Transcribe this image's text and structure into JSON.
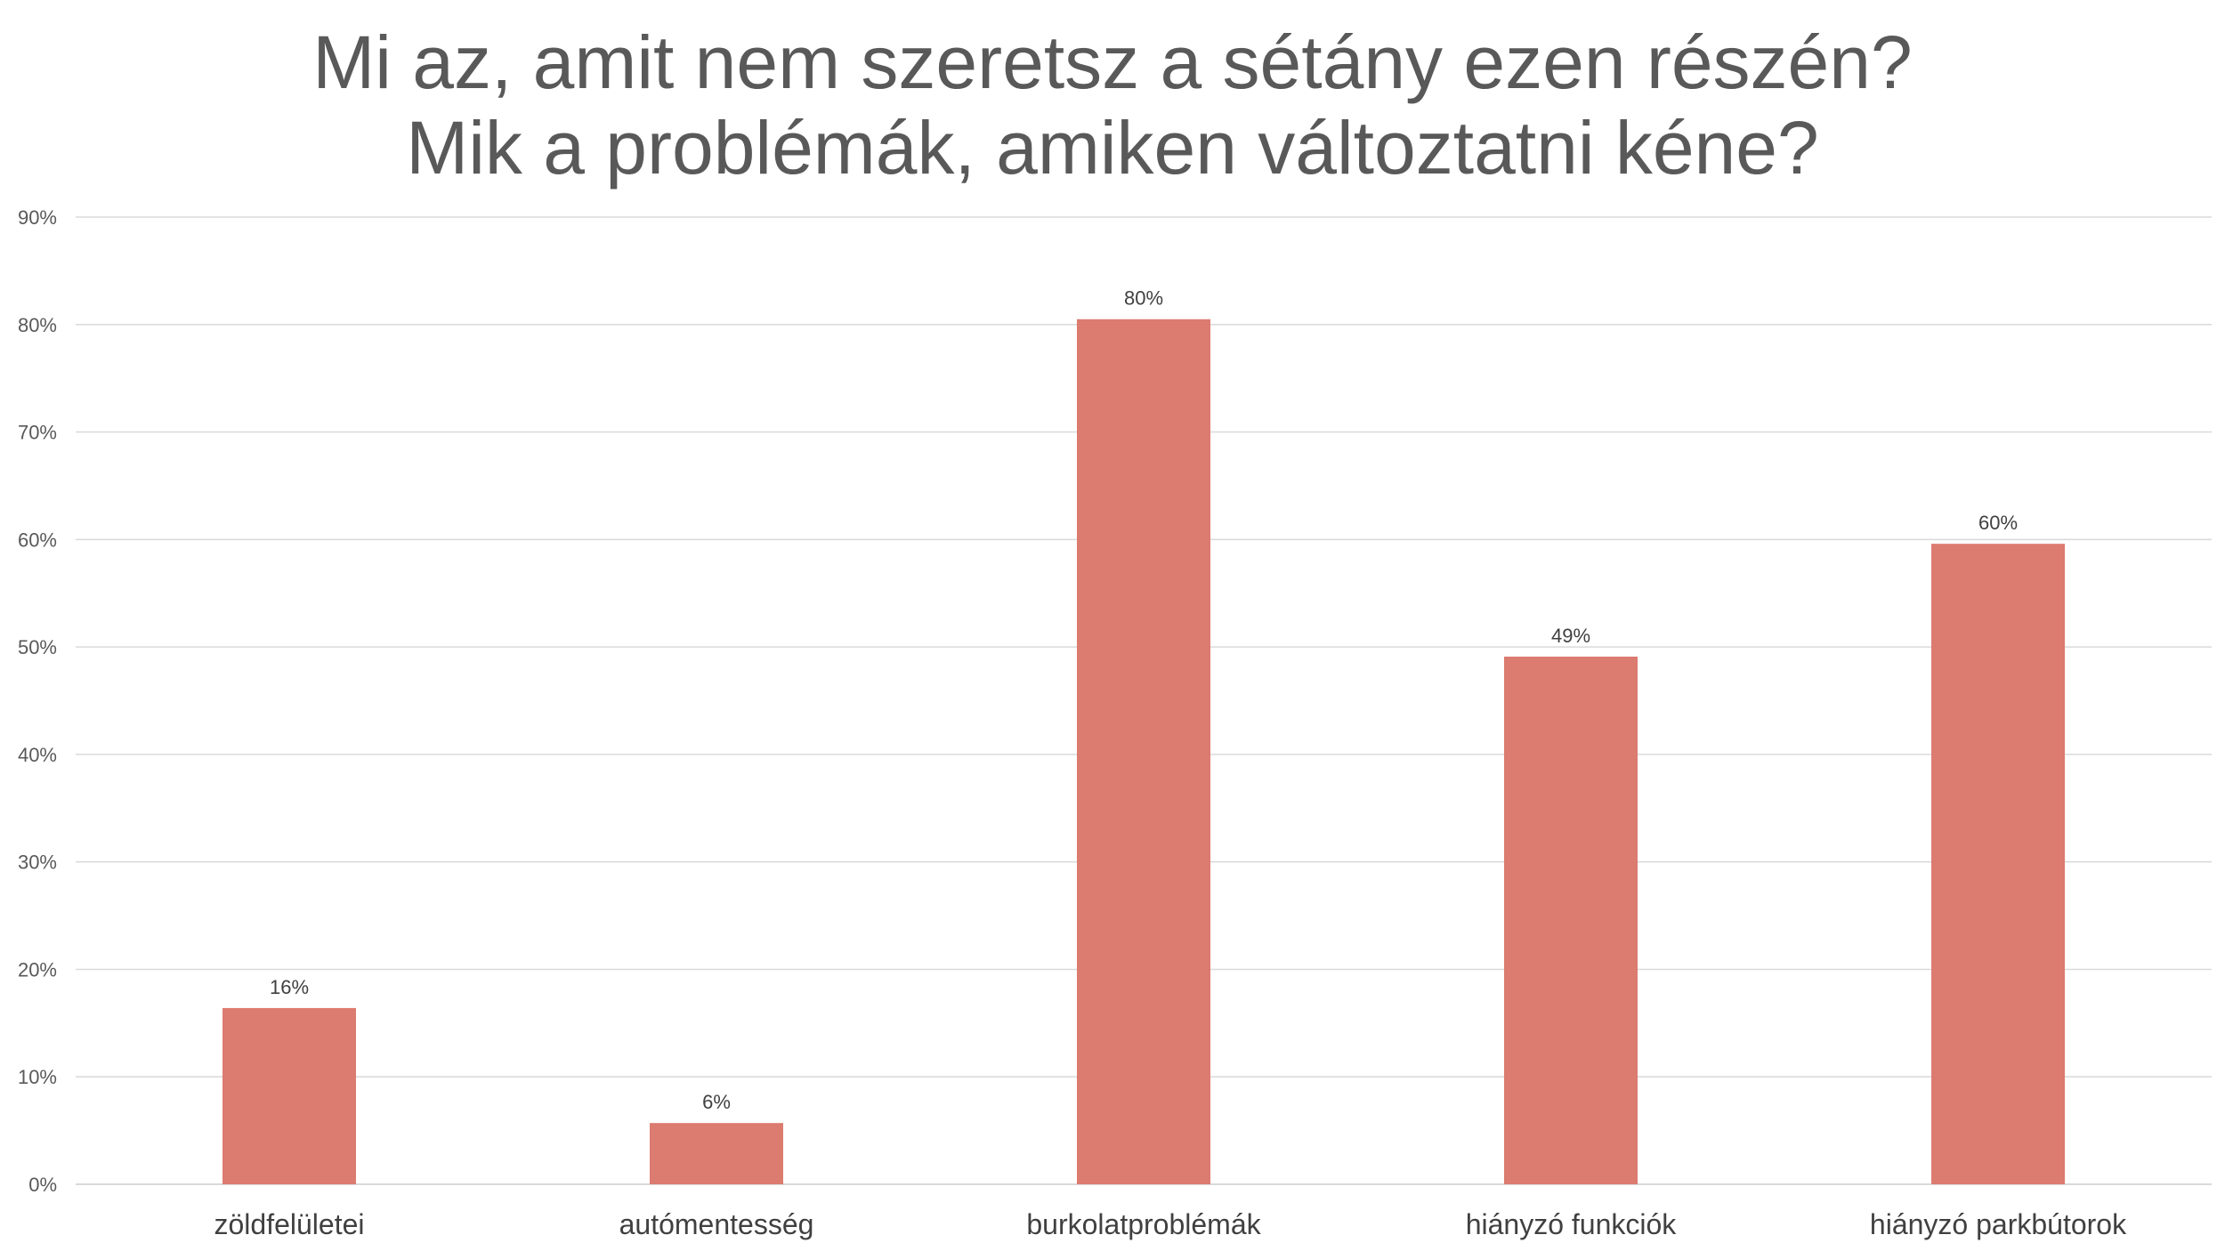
{
  "chart_data": {
    "type": "bar",
    "title_lines": [
      "Mi az, amit nem szeretsz a sétány ezen részén?",
      "Mik a problémák, amiken változtatni kéne?"
    ],
    "categories": [
      "zöldfelületei",
      "autómentesség",
      "burkolatproblémák",
      "hiányzó funkciók",
      "hiányzó parkbútorok"
    ],
    "values": [
      16.4,
      5.7,
      80.5,
      49.1,
      59.6
    ],
    "data_labels": [
      "16%",
      "6%",
      "80%",
      "49%",
      "60%"
    ],
    "ylim": [
      0,
      90
    ],
    "ytick_values": [
      0,
      10,
      20,
      30,
      40,
      50,
      60,
      70,
      80,
      90
    ],
    "ytick_labels": [
      "0%",
      "10%",
      "20%",
      "30%",
      "40%",
      "50%",
      "60%",
      "70%",
      "80%",
      "90%"
    ],
    "grid": true,
    "legend": "none",
    "bar_color": "#dc7b70"
  }
}
